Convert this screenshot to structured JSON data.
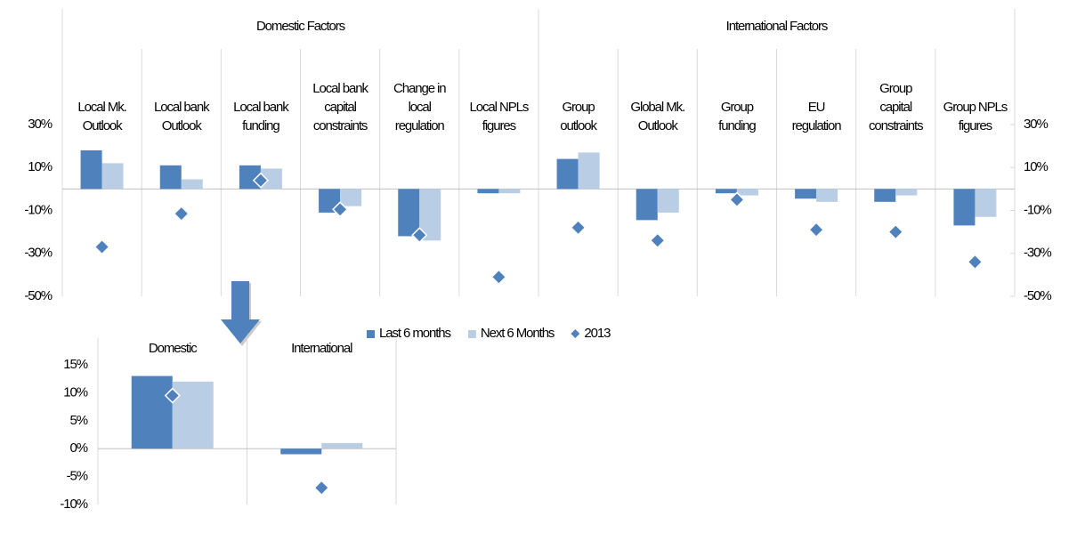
{
  "chart_data": [
    {
      "type": "bar",
      "groups": [
        {
          "name": "Domestic Factors",
          "count": 6
        },
        {
          "name": "International Factors",
          "count": 6
        }
      ],
      "categories": [
        [
          "Local Mk.",
          "Outlook"
        ],
        [
          "Local bank",
          "Outlook"
        ],
        [
          "Local bank",
          "funding"
        ],
        [
          "Local bank",
          "capital",
          "constraints"
        ],
        [
          "Change in",
          "local",
          "regulation"
        ],
        [
          "Local NPLs",
          "figures"
        ],
        [
          "Group",
          "outlook"
        ],
        [
          "Global Mk.",
          "Outlook"
        ],
        [
          "Group",
          "funding"
        ],
        [
          "EU",
          "regulation"
        ],
        [
          "Group",
          "capital",
          "constraints"
        ],
        [
          "Group NPLs",
          "figures"
        ]
      ],
      "series": [
        {
          "name": "Last 6 months",
          "type": "bar",
          "color": "#4f81bd",
          "values": [
            18,
            11,
            11,
            -11,
            -22,
            -2,
            14,
            -14.5,
            -2,
            -4.5,
            -6,
            -17
          ]
        },
        {
          "name": "Next 6 Months",
          "type": "bar",
          "color": "#b9cde5",
          "values": [
            12,
            4.5,
            9.5,
            -8,
            -24,
            -2,
            17,
            -11,
            -3,
            -6,
            -3,
            -13
          ]
        },
        {
          "name": "2013",
          "type": "marker",
          "color": "#4f81bd",
          "values": [
            -27,
            -11.5,
            4,
            -9.5,
            -21.5,
            -41,
            -18,
            -24,
            -5,
            -19,
            -20,
            -34
          ]
        }
      ],
      "ylim": [
        -50,
        30
      ],
      "yticks": [
        {
          "value": 30,
          "label": "30%"
        },
        {
          "value": 10,
          "label": "10%"
        },
        {
          "value": -10,
          "label": "-10%"
        },
        {
          "value": -30,
          "label": "-30%"
        },
        {
          "value": -50,
          "label": "-50%"
        }
      ],
      "mirror_ticks": true,
      "legend": "bottom"
    },
    {
      "type": "bar",
      "categories": [
        [
          "Domestic"
        ],
        [
          "International"
        ]
      ],
      "series": [
        {
          "type": "bar",
          "color": "#4f81bd",
          "values": [
            13,
            -1
          ]
        },
        {
          "type": "bar",
          "color": "#b9cde5",
          "values": [
            12,
            1
          ]
        },
        {
          "type": "marker",
          "color": "#4f81bd",
          "values": [
            9.5,
            -7
          ]
        }
      ],
      "ylim": [
        -10,
        15
      ],
      "yticks": [
        {
          "value": 15,
          "label": "15%"
        },
        {
          "value": 10,
          "label": "10%"
        },
        {
          "value": 5,
          "label": "5%"
        },
        {
          "value": 0,
          "label": "0%"
        },
        {
          "value": -5,
          "label": "-5%"
        },
        {
          "value": -10,
          "label": "-10%"
        }
      ],
      "mirror_ticks": false
    }
  ]
}
